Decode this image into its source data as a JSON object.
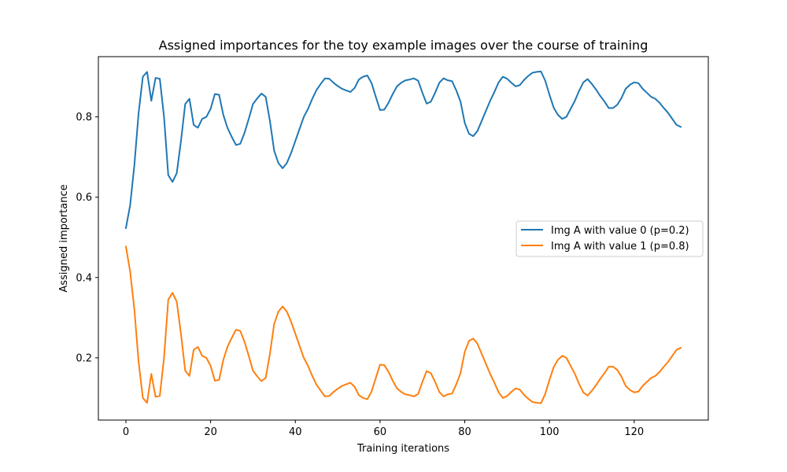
{
  "chart_data": {
    "type": "line",
    "title": "Assigned importances for the toy example images over the course of training",
    "xlabel": "Training iterations",
    "ylabel": "Assigned importance",
    "xlim": [
      -6.5,
      137.5
    ],
    "ylim": [
      0.045,
      0.95
    ],
    "xticks": [
      0,
      20,
      40,
      60,
      80,
      100,
      120
    ],
    "yticks": [
      0.2,
      0.4,
      0.6,
      0.8
    ],
    "xtick_labels": [
      "0",
      "20",
      "40",
      "60",
      "80",
      "100",
      "120"
    ],
    "ytick_labels": [
      "0.2",
      "0.4",
      "0.6",
      "0.8"
    ],
    "grid": false,
    "legend": "center-right",
    "series": [
      {
        "name": "Img A with value 0 (p=0.2)",
        "color": "#1f77b4",
        "values": [
          0.523,
          0.58,
          0.68,
          0.81,
          0.9,
          0.912,
          0.84,
          0.897,
          0.895,
          0.8,
          0.655,
          0.638,
          0.66,
          0.74,
          0.832,
          0.845,
          0.78,
          0.773,
          0.795,
          0.8,
          0.82,
          0.857,
          0.855,
          0.805,
          0.772,
          0.75,
          0.73,
          0.733,
          0.76,
          0.795,
          0.832,
          0.846,
          0.858,
          0.85,
          0.79,
          0.716,
          0.685,
          0.672,
          0.685,
          0.71,
          0.74,
          0.77,
          0.8,
          0.82,
          0.845,
          0.867,
          0.882,
          0.896,
          0.895,
          0.885,
          0.877,
          0.87,
          0.866,
          0.862,
          0.872,
          0.893,
          0.9,
          0.903,
          0.884,
          0.85,
          0.817,
          0.818,
          0.835,
          0.857,
          0.876,
          0.885,
          0.891,
          0.893,
          0.896,
          0.89,
          0.86,
          0.833,
          0.838,
          0.86,
          0.885,
          0.896,
          0.891,
          0.889,
          0.866,
          0.838,
          0.785,
          0.758,
          0.752,
          0.765,
          0.79,
          0.815,
          0.84,
          0.862,
          0.886,
          0.9,
          0.895,
          0.885,
          0.876,
          0.879,
          0.892,
          0.902,
          0.91,
          0.912,
          0.913,
          0.89,
          0.855,
          0.823,
          0.805,
          0.795,
          0.8,
          0.82,
          0.84,
          0.865,
          0.886,
          0.894,
          0.882,
          0.868,
          0.852,
          0.838,
          0.822,
          0.822,
          0.83,
          0.847,
          0.87,
          0.88,
          0.886,
          0.884,
          0.87,
          0.86,
          0.85,
          0.845,
          0.835,
          0.822,
          0.81,
          0.795,
          0.78,
          0.775
        ]
      },
      {
        "name": "Img A with value 1 (p=0.8)",
        "color": "#ff7f0e",
        "values": [
          0.477,
          0.415,
          0.32,
          0.19,
          0.1,
          0.088,
          0.16,
          0.103,
          0.105,
          0.2,
          0.345,
          0.362,
          0.34,
          0.26,
          0.168,
          0.155,
          0.22,
          0.227,
          0.205,
          0.2,
          0.18,
          0.143,
          0.145,
          0.195,
          0.228,
          0.25,
          0.27,
          0.267,
          0.24,
          0.205,
          0.168,
          0.154,
          0.142,
          0.15,
          0.21,
          0.284,
          0.315,
          0.328,
          0.315,
          0.29,
          0.26,
          0.23,
          0.2,
          0.18,
          0.155,
          0.133,
          0.118,
          0.104,
          0.105,
          0.115,
          0.123,
          0.13,
          0.134,
          0.138,
          0.128,
          0.107,
          0.1,
          0.097,
          0.116,
          0.15,
          0.183,
          0.182,
          0.165,
          0.143,
          0.124,
          0.115,
          0.109,
          0.107,
          0.104,
          0.11,
          0.14,
          0.167,
          0.162,
          0.14,
          0.115,
          0.104,
          0.109,
          0.111,
          0.134,
          0.162,
          0.215,
          0.242,
          0.248,
          0.235,
          0.21,
          0.185,
          0.16,
          0.138,
          0.114,
          0.1,
          0.105,
          0.115,
          0.124,
          0.121,
          0.108,
          0.098,
          0.09,
          0.088,
          0.087,
          0.11,
          0.145,
          0.177,
          0.195,
          0.205,
          0.2,
          0.18,
          0.16,
          0.135,
          0.114,
          0.106,
          0.118,
          0.132,
          0.148,
          0.162,
          0.178,
          0.178,
          0.17,
          0.153,
          0.13,
          0.12,
          0.114,
          0.116,
          0.13,
          0.14,
          0.15,
          0.155,
          0.165,
          0.178,
          0.19,
          0.205,
          0.22,
          0.225
        ]
      }
    ]
  }
}
